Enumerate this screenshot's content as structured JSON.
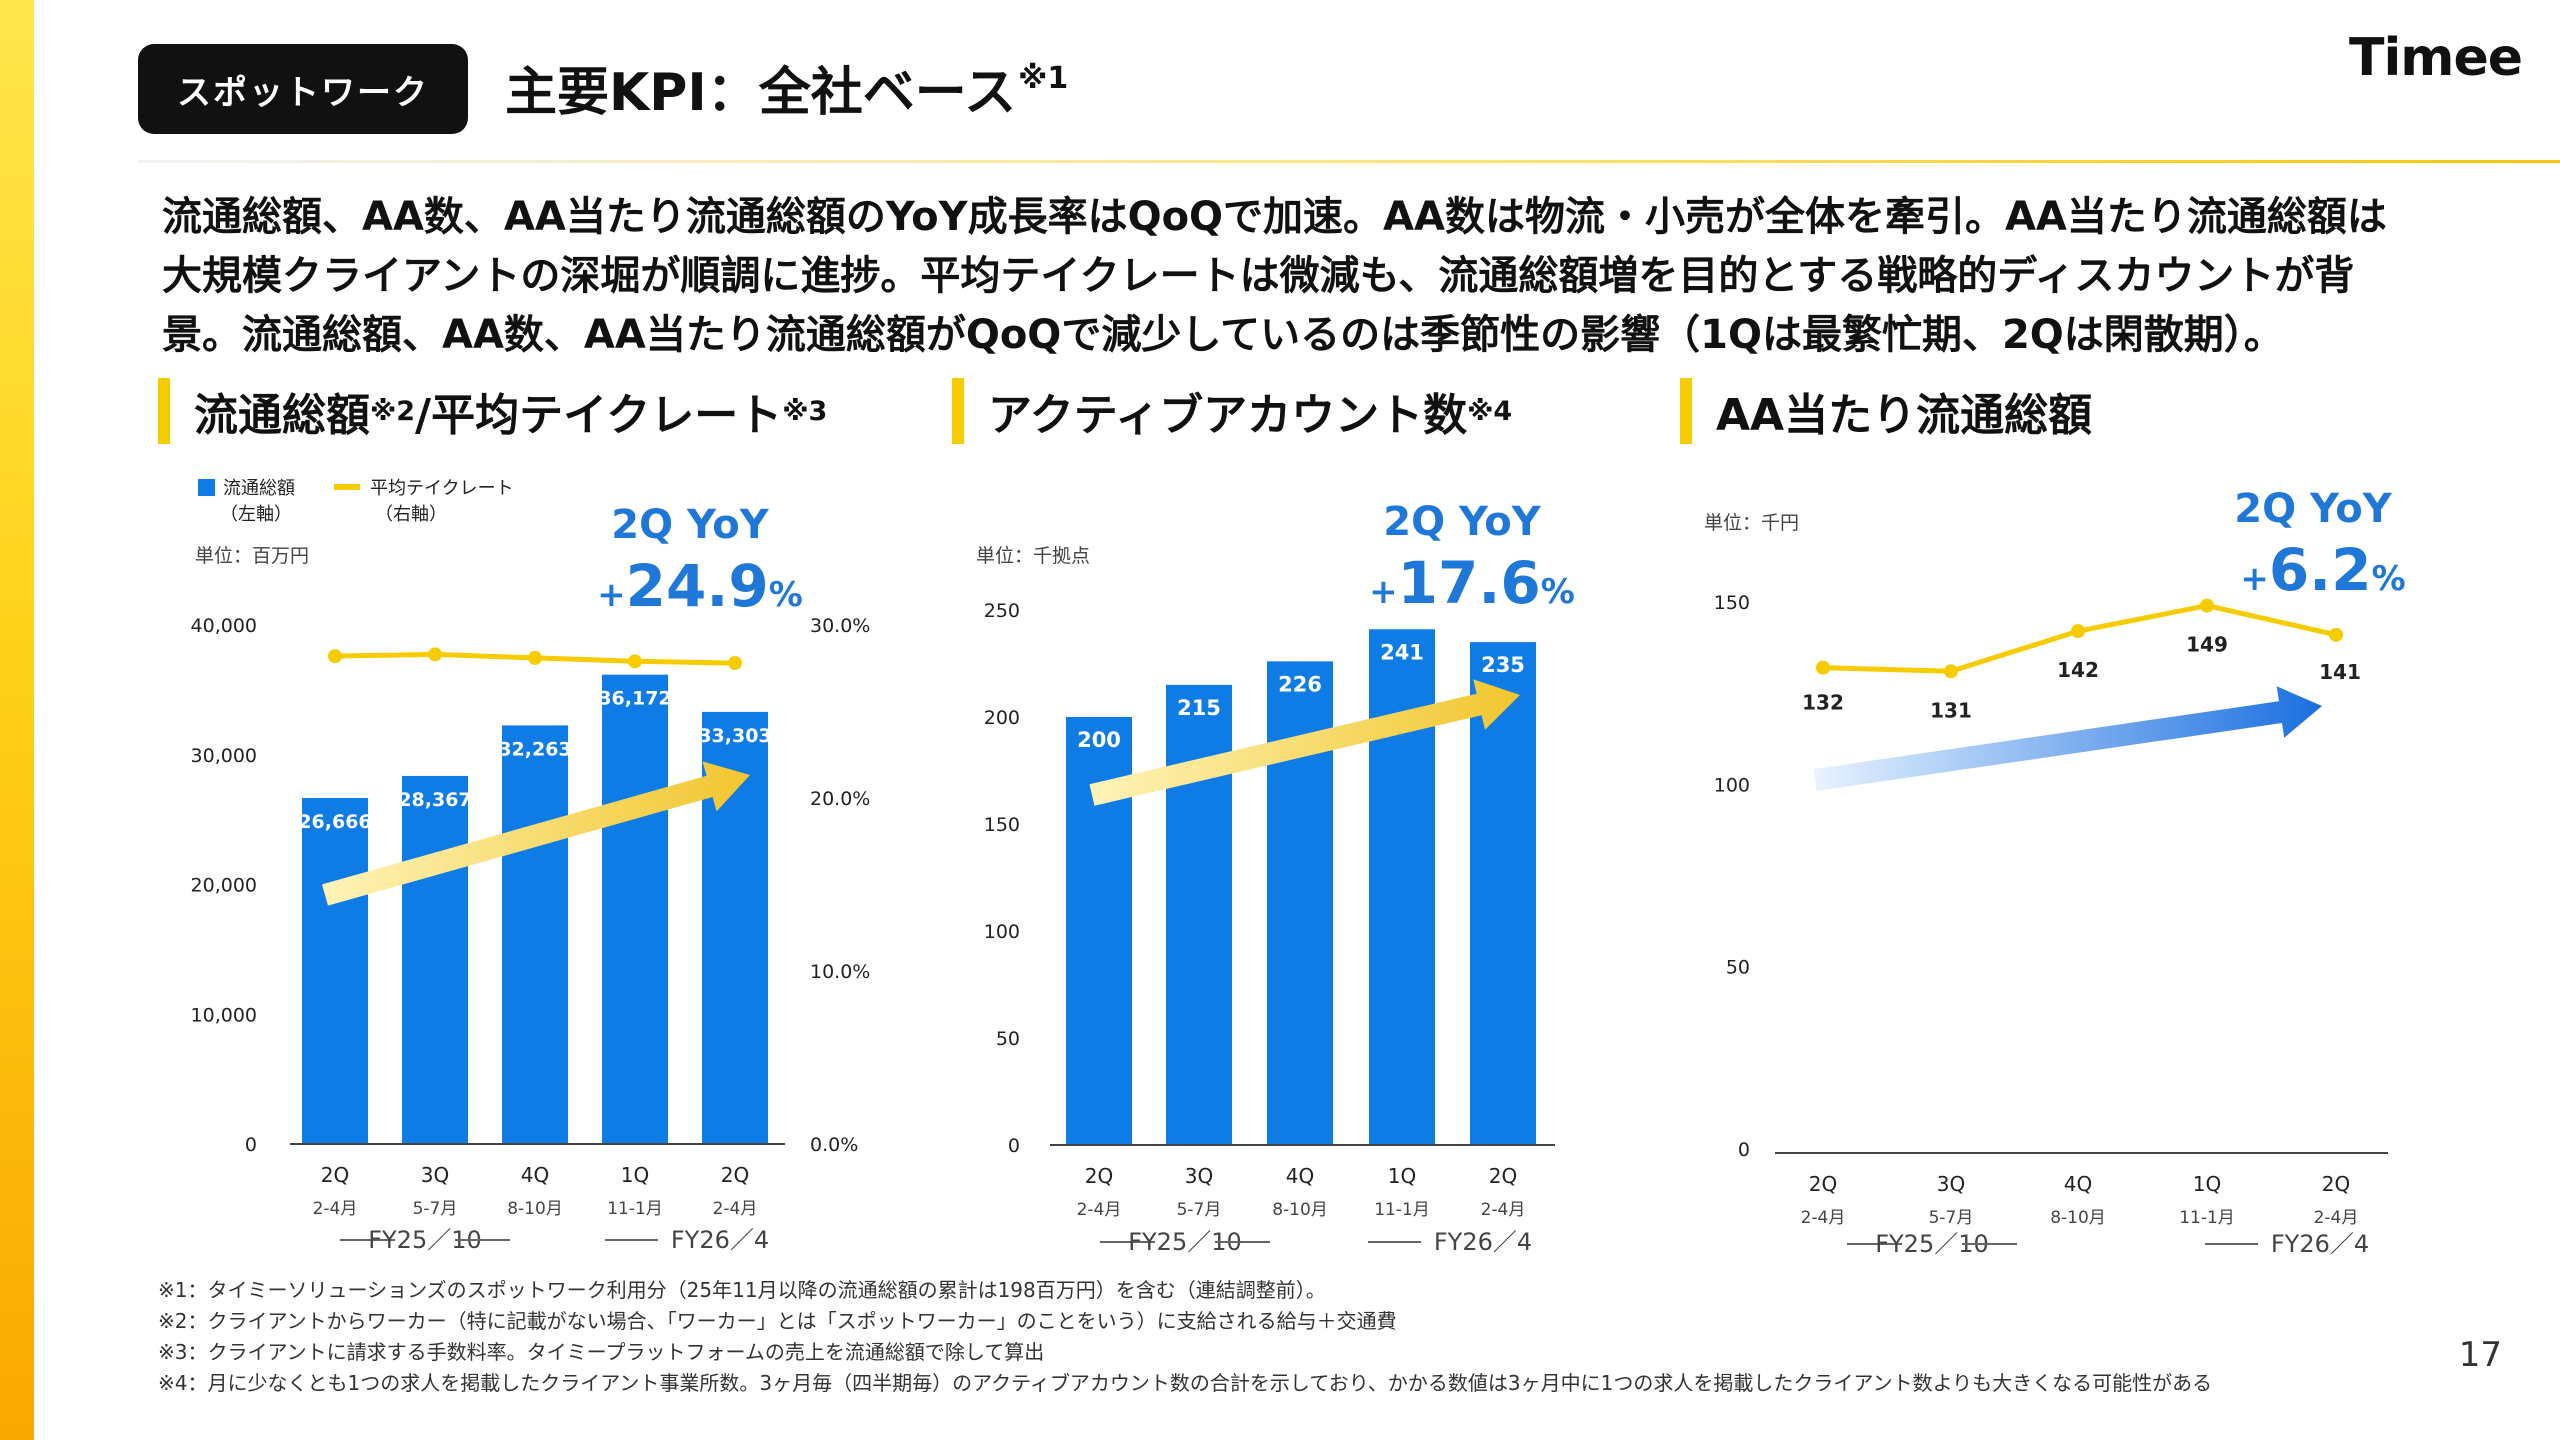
{
  "header": {
    "category": "スポットワーク",
    "title": "主要KPI：全社ベース",
    "title_note": "※1",
    "logo": "Timee",
    "page_number": "17"
  },
  "summary": [
    "流通総額、AA数、AA当たり流通総額のYoY成長率はQoQで加速。AA数は物流・小売が全体を牽引。AA当たり流通総額は",
    "大規模クライアントの深堀が順調に進捗。平均テイクレートは微減も、流通総額増を目的とする戦略的ディスカウントが背",
    "景。流通総額、AA数、AA当たり流通総額がQoQで減少しているのは季節性の影響（1Qは最繁忙期、2Qは閑散期）。"
  ],
  "panels": {
    "p1": {
      "title_a": "流通総額",
      "note_a": "※2",
      "title_b": "/平均テイクレート",
      "note_b": "※3"
    },
    "p2": {
      "title": "アクティブアカウント数",
      "note": "※4"
    },
    "p3": {
      "title": "AA当たり流通総額"
    }
  },
  "footnotes": [
    "※1：タイミーソリューションズのスポットワーク利用分（25年11月以降の流通総額の累計は198百万円）を含む（連結調整前）。",
    "※2：クライアントからワーカー（特に記載がない場合、「ワーカー」とは「スポットワーカー」のことをいう）に支給される給与＋交通費",
    "※3：クライアントに請求する手数料率。タイミープラットフォームの売上を流通総額で除して算出",
    "※4：月に少なくとも1つの求人を掲載したクライアント事業所数。3ヶ月毎（四半期毎）のアクティブアカウント数の合計を示しており、かかる数値は3ヶ月中に1つの求人を掲載したクライアント数よりも大きくなる可能性がある"
  ],
  "colors": {
    "bar": "#0f7ce6",
    "line": "#f6cc00",
    "accent_text": "#1f78d8",
    "arrow_yellow": "#f2c62e",
    "arrow_blue": "#1a6fe0"
  },
  "chart_data": [
    {
      "type": "bar",
      "categories": [
        "2Q",
        "3Q",
        "4Q",
        "1Q",
        "2Q"
      ],
      "months": [
        "2-4月",
        "5-7月",
        "8-10月",
        "11-1月",
        "2-4月"
      ],
      "fiscal_groups": [
        "FY25／10",
        "FY26／4"
      ],
      "unit": "単位：百万円",
      "legend": [
        "流通総額\n（左軸）",
        "平均テイクレート\n（右軸）"
      ],
      "series": [
        {
          "name": "流通総額",
          "axis": "left",
          "values": [
            26666,
            28367,
            32263,
            36172,
            33303
          ],
          "labels": [
            "26,666",
            "28,367",
            "32,263",
            "36,172",
            "33,303"
          ]
        },
        {
          "name": "平均テイクレート",
          "axis": "right",
          "type": "line",
          "values": [
            28.2,
            28.3,
            28.1,
            27.9,
            27.8
          ]
        }
      ],
      "ylim": [
        0,
        40000
      ],
      "yticks": [
        "0",
        "10,000",
        "20,000",
        "30,000",
        "40,000"
      ],
      "y2lim": [
        0,
        30
      ],
      "y2ticks": [
        "0.0%",
        "10.0%",
        "20.0%",
        "30.0%"
      ],
      "annotation": {
        "line1": "2Q YoY",
        "sign": "+",
        "value": "24.9",
        "unit": "%"
      },
      "arrow": "yellow"
    },
    {
      "type": "bar",
      "categories": [
        "2Q",
        "3Q",
        "4Q",
        "1Q",
        "2Q"
      ],
      "months": [
        "2-4月",
        "5-7月",
        "8-10月",
        "11-1月",
        "2-4月"
      ],
      "fiscal_groups": [
        "FY25／10",
        "FY26／4"
      ],
      "unit": "単位：千拠点",
      "series": [
        {
          "name": "アクティブアカウント数",
          "values": [
            200,
            215,
            226,
            241,
            235
          ],
          "labels": [
            "200",
            "215",
            "226",
            "241",
            "235"
          ]
        }
      ],
      "ylim": [
        0,
        250
      ],
      "yticks": [
        "0",
        "50",
        "100",
        "150",
        "200",
        "250"
      ],
      "annotation": {
        "line1": "2Q YoY",
        "sign": "+",
        "value": "17.6",
        "unit": "%"
      },
      "arrow": "yellow"
    },
    {
      "type": "line",
      "categories": [
        "2Q",
        "3Q",
        "4Q",
        "1Q",
        "2Q"
      ],
      "months": [
        "2-4月",
        "5-7月",
        "8-10月",
        "11-1月",
        "2-4月"
      ],
      "fiscal_groups": [
        "FY25／10",
        "FY26／4"
      ],
      "unit": "単位：千円",
      "series": [
        {
          "name": "AA当たり流通総額",
          "values": [
            132,
            131,
            142,
            149,
            141
          ],
          "labels": [
            "132",
            "131",
            "142",
            "149",
            "141"
          ]
        }
      ],
      "ylim": [
        0,
        150
      ],
      "yticks": [
        "0",
        "50",
        "100",
        "150"
      ],
      "annotation": {
        "line1": "2Q YoY",
        "sign": "+",
        "value": "6.2",
        "unit": "%"
      },
      "arrow": "blue"
    }
  ]
}
